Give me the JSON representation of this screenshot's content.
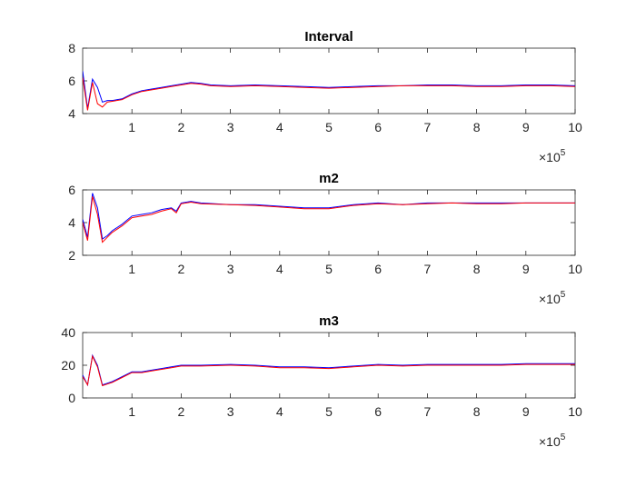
{
  "chart_data": [
    {
      "type": "line",
      "title": "Interval",
      "xlabel": "",
      "ylabel": "",
      "xlim": [
        0,
        10
      ],
      "ylim": [
        4,
        8
      ],
      "xticks": [
        1,
        2,
        3,
        4,
        5,
        6,
        7,
        8,
        9,
        10
      ],
      "yticks": [
        4,
        6,
        8
      ],
      "x_exponent": {
        "base": "10",
        "power": "5",
        "prefix": "×"
      },
      "grid": false,
      "colors": {
        "blue": "#0000ff",
        "red": "#ff0000"
      },
      "series": [
        {
          "color": "#0000ff",
          "x": [
            0,
            0.1,
            0.2,
            0.3,
            0.4,
            0.5,
            0.6,
            0.8,
            1.0,
            1.2,
            1.4,
            1.6,
            1.8,
            2.0,
            2.2,
            2.4,
            2.6,
            3.0,
            3.5,
            4.0,
            4.5,
            5.0,
            5.5,
            6.0,
            6.5,
            7.0,
            7.5,
            8.0,
            8.5,
            9.0,
            9.5,
            10.0
          ],
          "y": [
            6.6,
            4.3,
            6.1,
            5.6,
            4.7,
            4.8,
            4.8,
            4.9,
            5.2,
            5.4,
            5.5,
            5.6,
            5.7,
            5.8,
            5.9,
            5.85,
            5.75,
            5.7,
            5.75,
            5.7,
            5.65,
            5.6,
            5.65,
            5.7,
            5.7,
            5.75,
            5.75,
            5.7,
            5.7,
            5.75,
            5.75,
            5.7
          ]
        },
        {
          "color": "#ff0000",
          "x": [
            0,
            0.1,
            0.2,
            0.3,
            0.4,
            0.5,
            0.6,
            0.8,
            1.0,
            1.2,
            1.4,
            1.6,
            1.8,
            2.0,
            2.2,
            2.4,
            2.6,
            3.0,
            3.5,
            4.0,
            4.5,
            5.0,
            5.5,
            6.0,
            6.5,
            7.0,
            7.5,
            8.0,
            8.5,
            9.0,
            9.5,
            10.0
          ],
          "y": [
            6.2,
            4.2,
            5.9,
            4.6,
            4.4,
            4.7,
            4.75,
            4.85,
            5.15,
            5.35,
            5.45,
            5.55,
            5.65,
            5.75,
            5.85,
            5.8,
            5.7,
            5.65,
            5.7,
            5.65,
            5.6,
            5.55,
            5.6,
            5.65,
            5.7,
            5.7,
            5.7,
            5.65,
            5.65,
            5.7,
            5.7,
            5.65
          ]
        }
      ]
    },
    {
      "type": "line",
      "title": "m2",
      "xlabel": "",
      "ylabel": "",
      "xlim": [
        0,
        10
      ],
      "ylim": [
        2,
        6
      ],
      "xticks": [
        1,
        2,
        3,
        4,
        5,
        6,
        7,
        8,
        9,
        10
      ],
      "yticks": [
        2,
        4,
        6
      ],
      "x_exponent": {
        "base": "10",
        "power": "5",
        "prefix": "×"
      },
      "grid": false,
      "colors": {
        "blue": "#0000ff",
        "red": "#ff0000"
      },
      "series": [
        {
          "color": "#0000ff",
          "x": [
            0,
            0.1,
            0.2,
            0.3,
            0.4,
            0.5,
            0.6,
            0.8,
            1.0,
            1.2,
            1.4,
            1.6,
            1.8,
            1.9,
            2.0,
            2.2,
            2.4,
            3.0,
            3.5,
            4.0,
            4.5,
            5.0,
            5.5,
            6.0,
            6.5,
            7.0,
            7.5,
            8.0,
            8.5,
            9.0,
            9.5,
            10.0
          ],
          "y": [
            4.2,
            3.1,
            5.8,
            4.9,
            3.0,
            3.2,
            3.5,
            3.9,
            4.4,
            4.5,
            4.6,
            4.8,
            4.9,
            4.7,
            5.2,
            5.3,
            5.2,
            5.1,
            5.1,
            5.0,
            4.9,
            4.9,
            5.1,
            5.2,
            5.1,
            5.2,
            5.2,
            5.2,
            5.2,
            5.2,
            5.2,
            5.2
          ]
        },
        {
          "color": "#ff0000",
          "x": [
            0,
            0.1,
            0.2,
            0.3,
            0.4,
            0.5,
            0.6,
            0.8,
            1.0,
            1.2,
            1.4,
            1.6,
            1.8,
            1.9,
            2.0,
            2.2,
            2.4,
            3.0,
            3.5,
            4.0,
            4.5,
            5.0,
            5.5,
            6.0,
            6.5,
            7.0,
            7.5,
            8.0,
            8.5,
            9.0,
            9.5,
            10.0
          ],
          "y": [
            4.0,
            2.9,
            5.6,
            4.5,
            2.8,
            3.1,
            3.4,
            3.8,
            4.3,
            4.4,
            4.5,
            4.7,
            4.85,
            4.6,
            5.15,
            5.25,
            5.15,
            5.1,
            5.05,
            4.95,
            4.85,
            4.85,
            5.05,
            5.15,
            5.1,
            5.15,
            5.2,
            5.15,
            5.15,
            5.2,
            5.2,
            5.2
          ]
        }
      ]
    },
    {
      "type": "line",
      "title": "m3",
      "xlabel": "",
      "ylabel": "",
      "xlim": [
        0,
        10
      ],
      "ylim": [
        0,
        40
      ],
      "xticks": [
        1,
        2,
        3,
        4,
        5,
        6,
        7,
        8,
        9,
        10
      ],
      "yticks": [
        0,
        20,
        40
      ],
      "x_exponent": {
        "base": "10",
        "power": "5",
        "prefix": "×"
      },
      "grid": false,
      "colors": {
        "blue": "#0000ff",
        "red": "#ff0000"
      },
      "series": [
        {
          "color": "#0000ff",
          "x": [
            0,
            0.1,
            0.2,
            0.3,
            0.4,
            0.5,
            0.6,
            0.8,
            1.0,
            1.2,
            1.4,
            1.6,
            1.8,
            2.0,
            2.2,
            2.4,
            3.0,
            3.5,
            4.0,
            4.5,
            5.0,
            5.5,
            6.0,
            6.5,
            7.0,
            7.5,
            8.0,
            8.5,
            9.0,
            9.5,
            10.0
          ],
          "y": [
            14,
            8,
            26,
            20,
            8,
            9,
            10,
            13,
            16,
            16,
            17,
            18,
            19,
            20,
            20,
            20,
            20.5,
            20,
            19,
            19,
            18.5,
            19.5,
            20.5,
            20,
            20.5,
            20.5,
            20.5,
            20.5,
            21,
            21,
            21
          ]
        },
        {
          "color": "#ff0000",
          "x": [
            0,
            0.1,
            0.2,
            0.3,
            0.4,
            0.5,
            0.6,
            0.8,
            1.0,
            1.2,
            1.4,
            1.6,
            1.8,
            2.0,
            2.2,
            2.4,
            3.0,
            3.5,
            4.0,
            4.5,
            5.0,
            5.5,
            6.0,
            6.5,
            7.0,
            7.5,
            8.0,
            8.5,
            9.0,
            9.5,
            10.0
          ],
          "y": [
            13,
            8,
            25.5,
            19,
            7.5,
            8.5,
            9.5,
            12.5,
            15.5,
            15.5,
            16.5,
            17.5,
            18.5,
            19.5,
            19.5,
            19.5,
            20,
            19.5,
            18.5,
            18.5,
            18,
            19,
            20,
            19.5,
            20,
            20,
            20,
            20,
            20.5,
            20.5,
            20.5
          ]
        }
      ]
    }
  ]
}
